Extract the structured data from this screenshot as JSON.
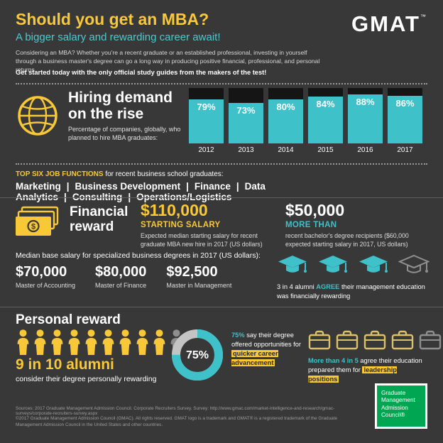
{
  "colors": {
    "yellow": "#f9c837",
    "teal": "#3fc1c9",
    "gold": "#dcc06a",
    "inactive": "#8f8f8f",
    "green": "#00a651",
    "background": "#383838"
  },
  "header": {
    "title": "Should you get an MBA?",
    "subtitle": "A bigger salary and rewarding career await!",
    "intro": "Considering an MBA? Whether you're a recent graduate or an established professional, investing in yourself through a business master's degree can go a long way in producing positive financial, professional, and personal returns.",
    "cta": "Get started today with the only official study guides from the makers of the test!",
    "logo": "GMAT",
    "logo_tm": "™"
  },
  "hiring": {
    "heading_line1": "Hiring demand",
    "heading_line2": "on the rise",
    "description": "Percentage of companies, globally, who planned to hire MBA graduates:"
  },
  "chart_data": [
    {
      "id": "hiring-by-year",
      "type": "bar",
      "title": "Percentage of companies, globally, who planned to hire MBA graduates",
      "categories": [
        "2012",
        "2013",
        "2014",
        "2015",
        "2016",
        "2017"
      ],
      "values": [
        79,
        73,
        80,
        84,
        88,
        86
      ],
      "unit": "%",
      "ylim": [
        0,
        100
      ],
      "bar_color": "#3fc1c9",
      "legend": "none",
      "grid": false
    },
    {
      "id": "career-advancement",
      "type": "donut",
      "value": 75,
      "unit": "%",
      "label": "75% say their degree offered opportunities for quicker career advancement",
      "color": "#3fc1c9"
    },
    {
      "id": "personally-rewarding",
      "type": "pictogram",
      "icon": "person",
      "value": 9,
      "total": 10,
      "label": "9 in 10 alumni consider their degree personally rewarding"
    },
    {
      "id": "financially-rewarding",
      "type": "pictogram",
      "icon": "grad-cap",
      "value": 3,
      "total": 4,
      "label": "3 in 4 alumni agree their management education was financially rewarding"
    },
    {
      "id": "leadership",
      "type": "pictogram",
      "icon": "briefcase",
      "value": 4,
      "total": 5,
      "label": "More than 4 in 5 agree their education prepared them for leadership positions"
    }
  ],
  "job_functions": {
    "label": "TOP SIX JOB FUNCTIONS",
    "label_rest": " for recent business school graduates:",
    "items": [
      "Marketing",
      "Business Development",
      "Finance",
      "Data Analytics",
      "Consulting",
      "Operations/Logistics"
    ]
  },
  "financial": {
    "heading_line1": "Financial",
    "heading_line2": "reward",
    "salary1": "$110,000",
    "salary1_label": "STARTING SALARY",
    "salary1_desc": "Expected median starting salary for recent graduate MBA new hire in 2017 (US dollars)",
    "salary2": "$50,000",
    "salary2_label": "MORE THAN",
    "salary2_desc": "recent bachelor's degree recipients ($60,000 expected starting salary in 2017, US dollars)"
  },
  "median": {
    "label": "Median base salary for specialized business degrees in 2017 (US dollars):",
    "degrees": [
      {
        "amount": "$70,000",
        "name": "Master of Accounting"
      },
      {
        "amount": "$80,000",
        "name": "Master of Finance"
      },
      {
        "amount": "$92,500",
        "name": "Master in Management"
      }
    ],
    "caps_pre": "3 in 4 alumni ",
    "caps_em": "AGREE",
    "caps_post": " their management education was financially rewarding"
  },
  "personal": {
    "heading": "Personal reward",
    "stat": "9 in 10 alumni",
    "stat_desc": "consider their degree personally rewarding",
    "donut_value": "75%",
    "adv_pre": "75%",
    "adv_mid": " say their degree offered opportunities for ",
    "adv_hl": "quicker career advancement",
    "lead_pre": "More than 4 in 5",
    "lead_mid": " agree their education prepared them for ",
    "lead_hl": "leadership positions"
  },
  "footer": {
    "sources": "Sources:  2017 Graduate Management Admission Council. Corporate Recruiters Survey. Survey: http://www.gmac.com/market-intelligence-and-research/gmac-surveys/corporate-recruiters-survey.aspx",
    "copyright": "©2017 Graduate Management Admission Council (GMAC). All rights reserved. GMAT logo is a trademark and GMAT® is a registered trademark of the Graduate Management Admission Council in the United States and other countries.",
    "gmac_lines": [
      "Graduate",
      "Management",
      "Admission",
      "Council®"
    ]
  }
}
